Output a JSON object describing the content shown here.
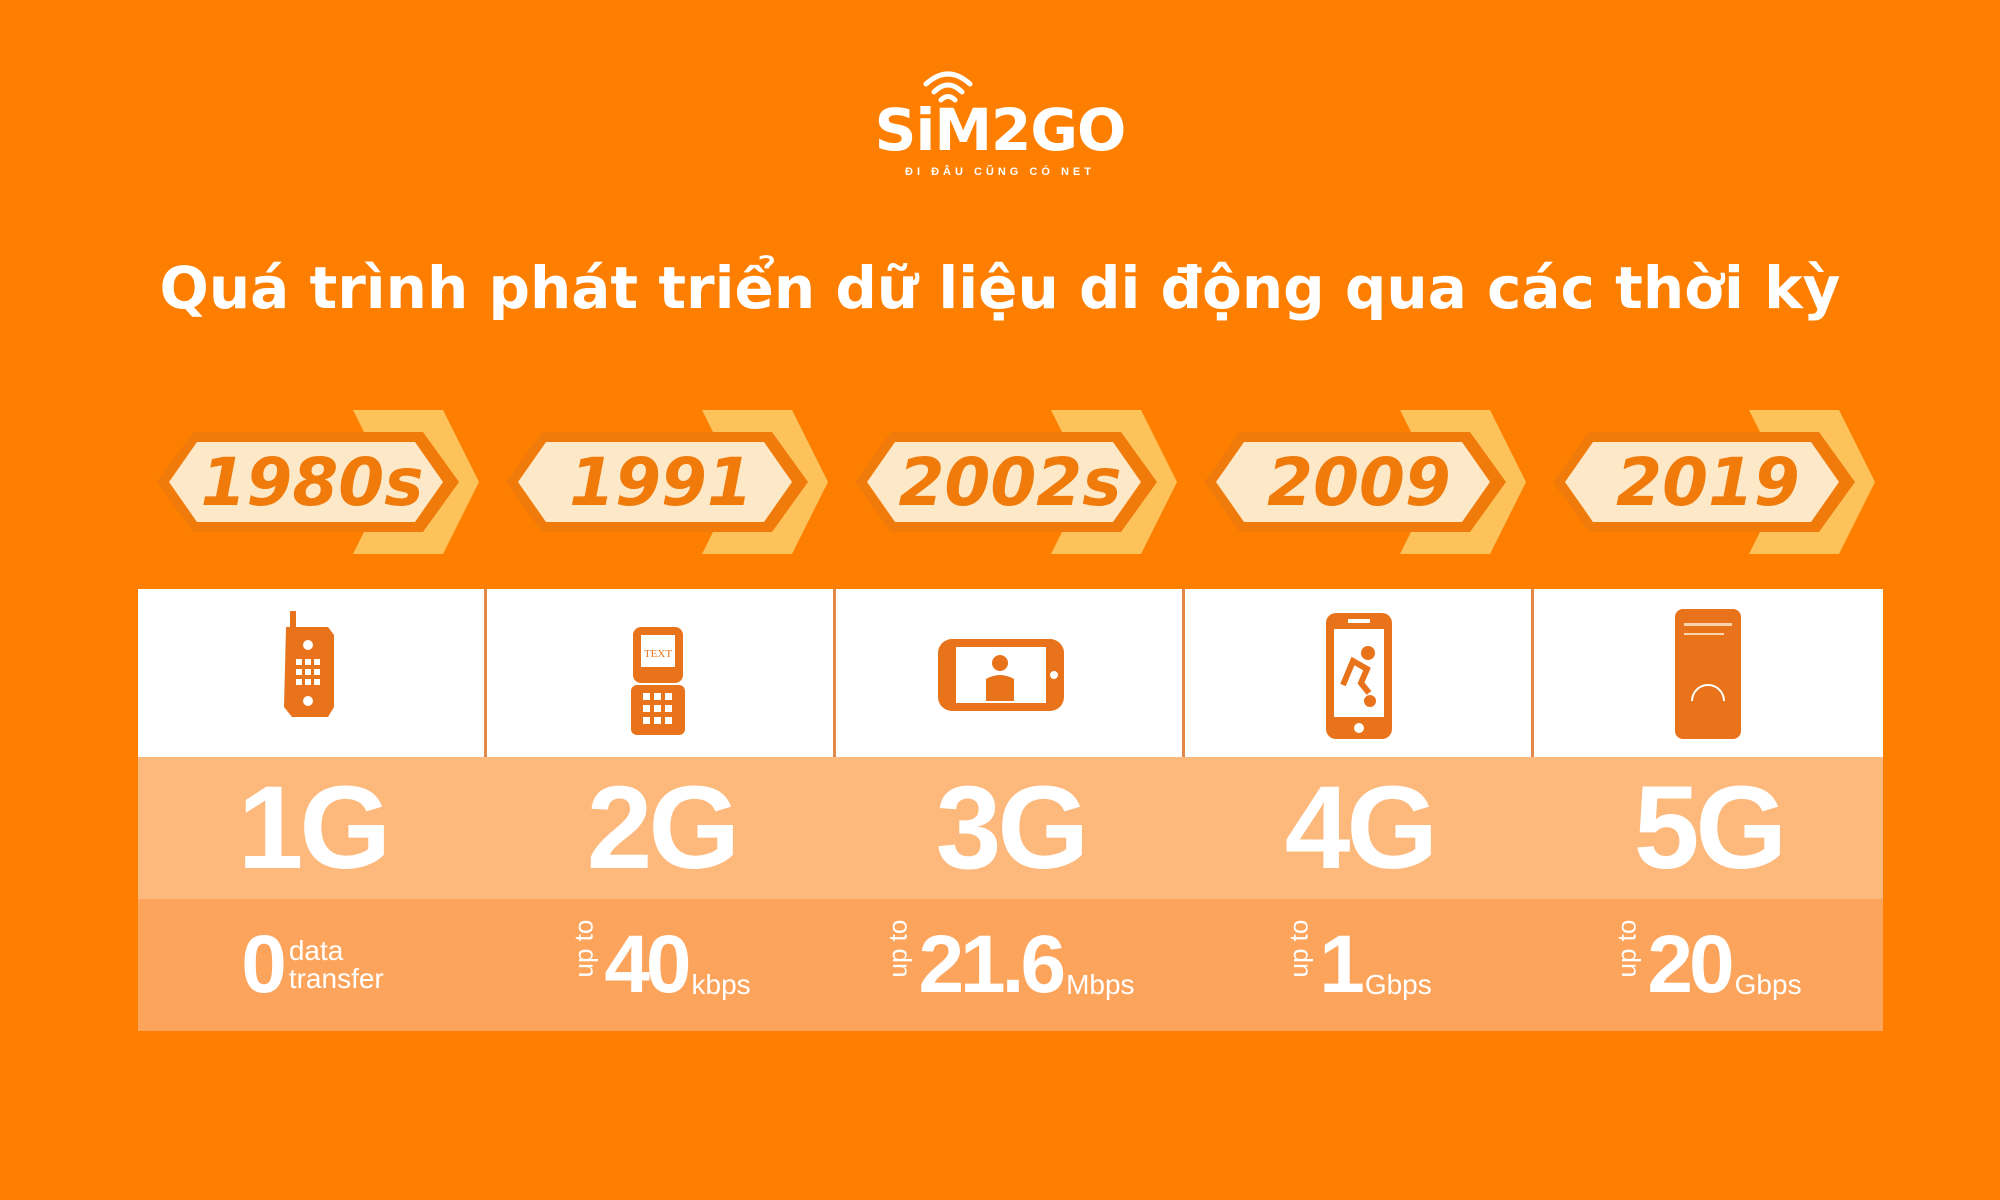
{
  "logo": {
    "wordmark": "SiM2GO",
    "tagline": "ĐI ĐÂU CŨNG CÓ NET"
  },
  "title": "Quá trình phát triển dữ liệu di động qua các thời kỳ",
  "colors": {
    "background": "#fe7f00",
    "badge_fill": "#fde8c8",
    "badge_accent": "#fdc35a",
    "icon": "#e8731a",
    "gen_row": "#fdb87c",
    "speed_row": "#fda45c"
  },
  "generations": [
    {
      "year": "1980s",
      "icon": "brick-phone-icon",
      "gen": "1G",
      "speed_prefix": "",
      "speed_value": "0",
      "speed_unit": "",
      "speed_desc_1": "data",
      "speed_desc_2": "transfer"
    },
    {
      "year": "1991",
      "icon": "text-phone-icon",
      "gen": "2G",
      "speed_prefix": "up to",
      "speed_value": "40",
      "speed_unit": "kbps"
    },
    {
      "year": "2002s",
      "icon": "video-call-phone-icon",
      "gen": "3G",
      "speed_prefix": "up to",
      "speed_value": "21.6",
      "speed_unit": "Mbps"
    },
    {
      "year": "2009",
      "icon": "smartphone-streaming-icon",
      "gen": "4G",
      "speed_prefix": "up to",
      "speed_value": "1",
      "speed_unit": "Gbps"
    },
    {
      "year": "2019",
      "icon": "speedtest-phone-icon",
      "gen": "5G",
      "speed_prefix": "up to",
      "speed_value": "20",
      "speed_unit": "Gbps"
    }
  ]
}
